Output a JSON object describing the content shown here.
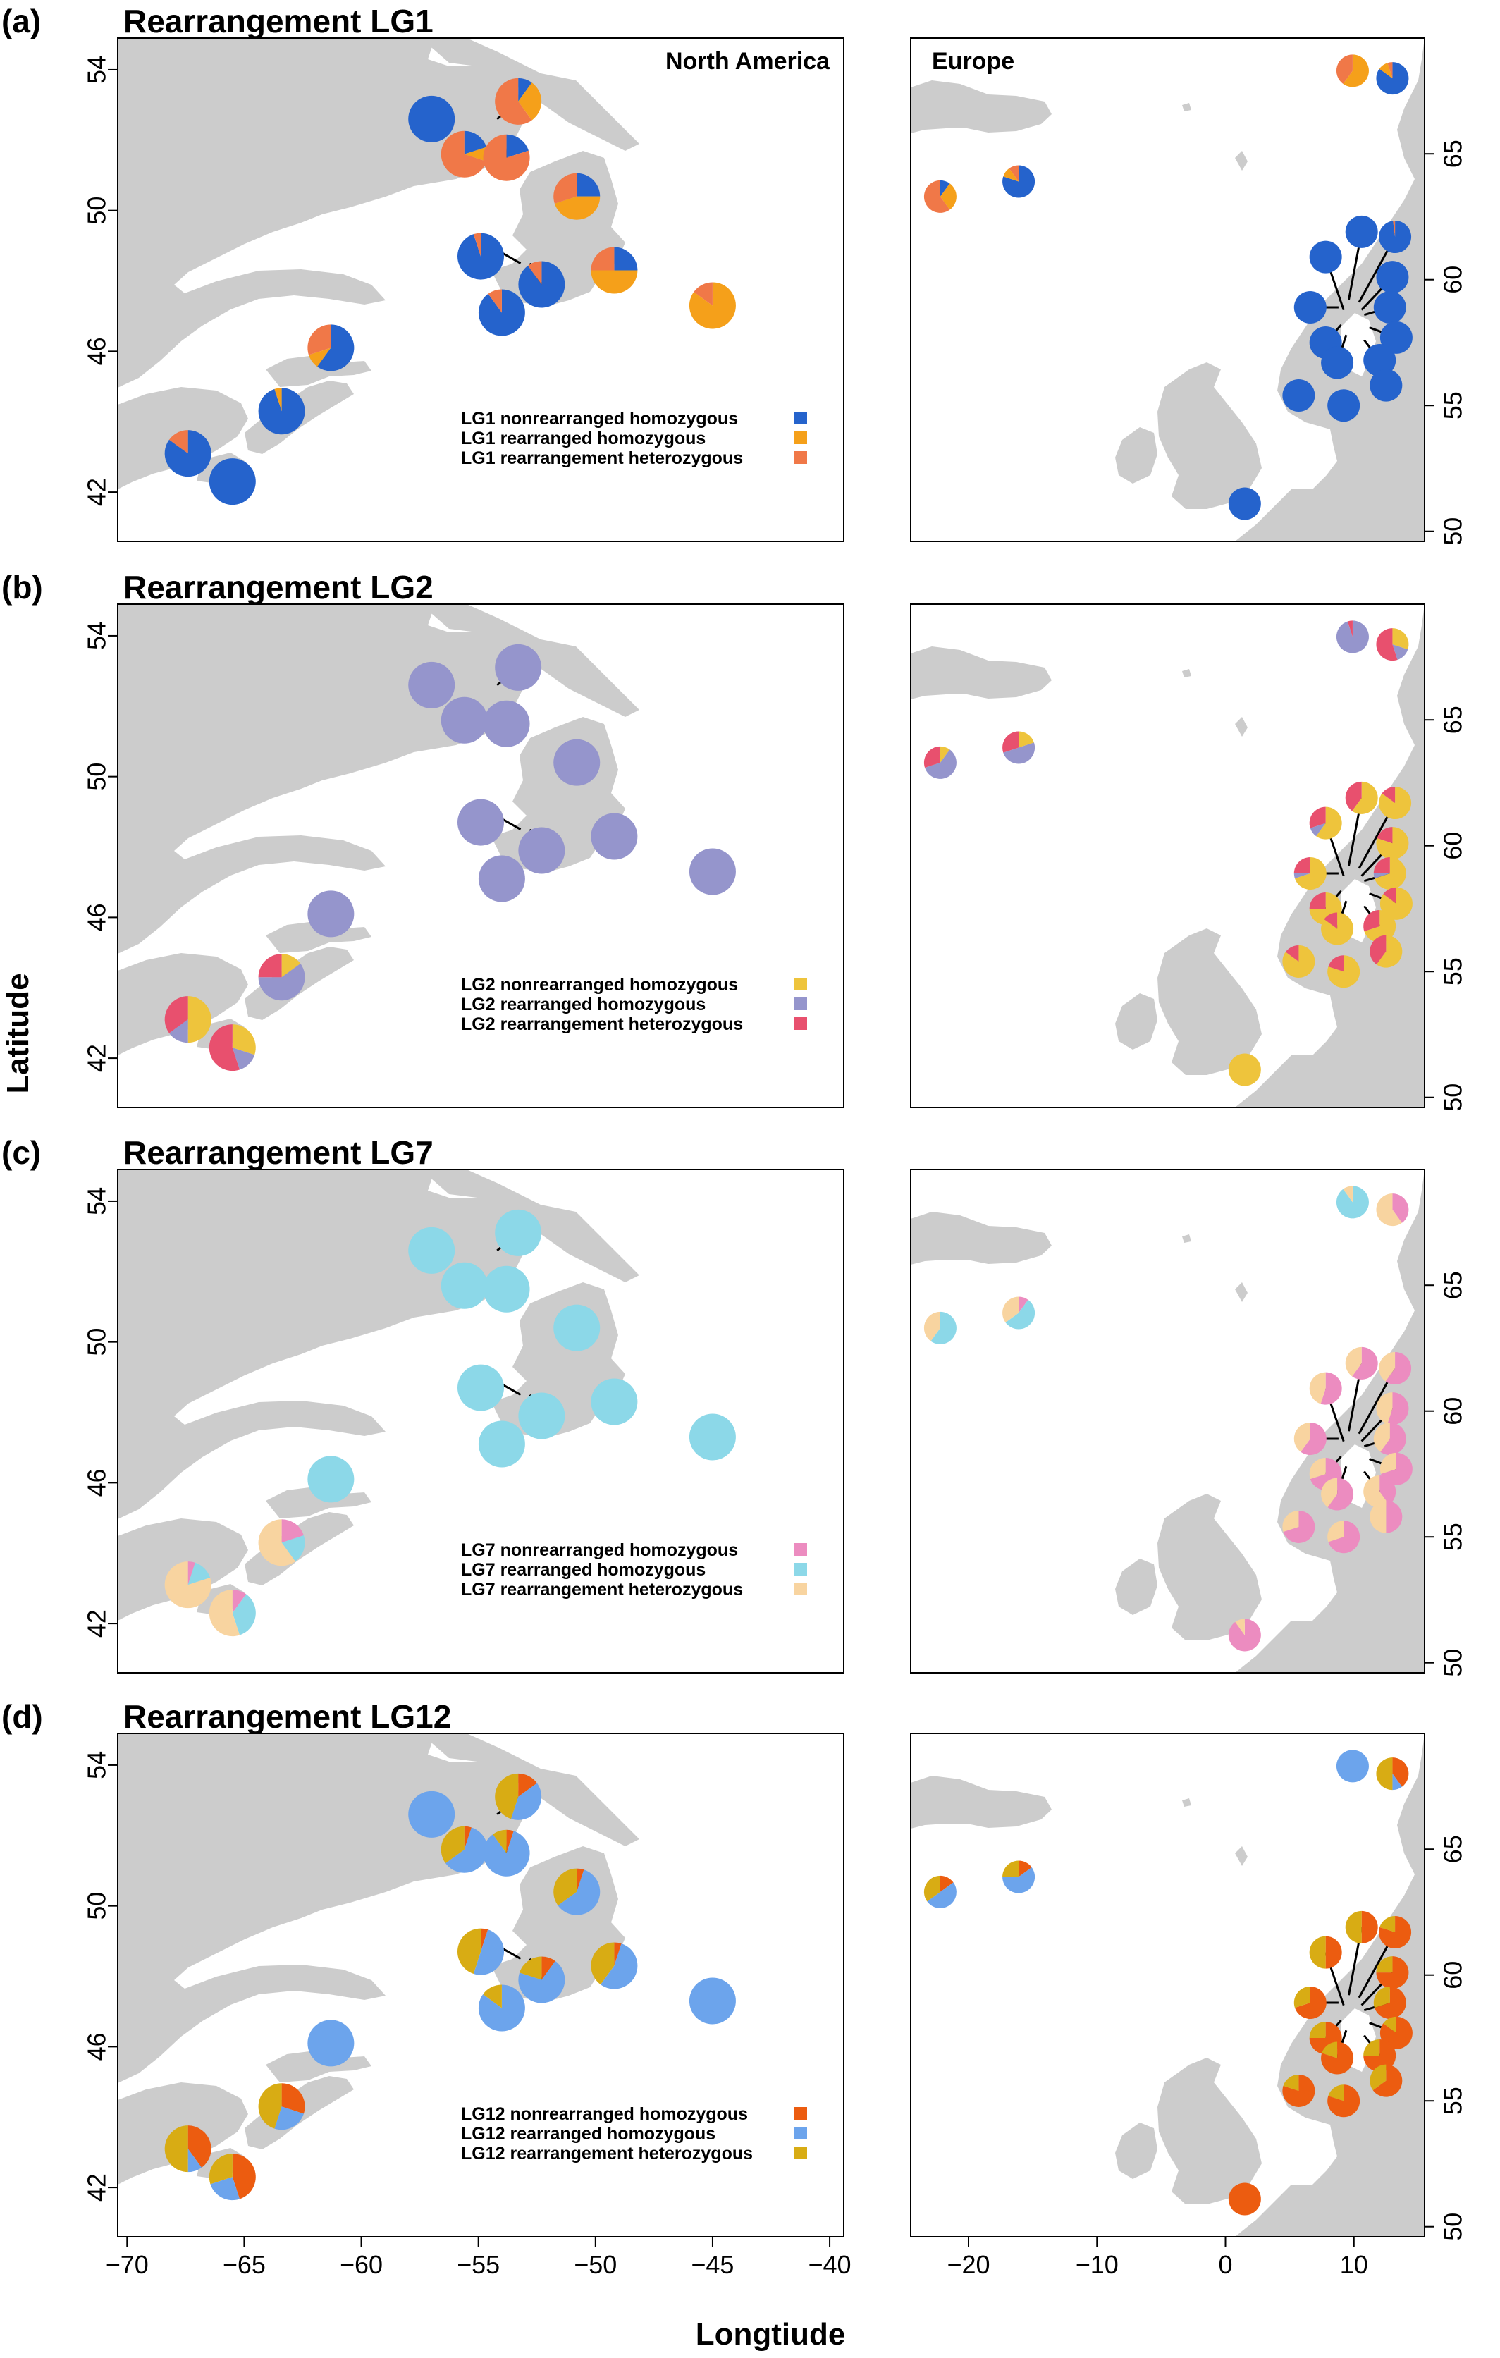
{
  "figure": {
    "xlabel": "Longtiude",
    "ylabel": "Latitude"
  },
  "regions": {
    "north_america": "North America",
    "europe": "Europe"
  },
  "axes": {
    "na_x_ticks": [
      "−70",
      "−65",
      "−60",
      "−55",
      "−50",
      "−45",
      "−40"
    ],
    "na_x_values": [
      -70,
      -65,
      -60,
      -55,
      -50,
      -45,
      -40
    ],
    "na_y_ticks": [
      "42",
      "46",
      "50",
      "54"
    ],
    "na_y_values": [
      42,
      46,
      50,
      54
    ],
    "eu_x_ticks": [
      "−20",
      "−10",
      "0",
      "10"
    ],
    "eu_x_values": [
      -20,
      -10,
      0,
      10
    ],
    "eu_y_ticks": [
      "50",
      "55",
      "60",
      "65"
    ],
    "eu_y_values": [
      50,
      55,
      60,
      65
    ],
    "na_xlim": [
      -70.4,
      -39.4
    ],
    "na_ylim": [
      40.6,
      54.9
    ],
    "eu_xlim": [
      -24.5,
      15.5
    ],
    "eu_ylim": [
      49.6,
      69.6
    ]
  },
  "panels": [
    {
      "letter": "(a)",
      "title": "Rearrangement LG1",
      "legend": [
        {
          "label": "LG1 nonrearranged homozygous",
          "color": "#2563cc"
        },
        {
          "label": "LG1 rearranged homozygous",
          "color": "#f5a01a"
        },
        {
          "label": "LG1 rearrangement heterozygous",
          "color": "#f07848"
        }
      ]
    },
    {
      "letter": "(b)",
      "title": "Rearrangement LG2",
      "legend": [
        {
          "label": "LG2 nonrearranged homozygous",
          "color": "#eec43c"
        },
        {
          "label": "LG2 rearranged homozygous",
          "color": "#9595cc"
        },
        {
          "label": "LG2 rearrangement heterozygous",
          "color": "#e8506e"
        }
      ]
    },
    {
      "letter": "(c)",
      "title": "Rearrangement LG7",
      "legend": [
        {
          "label": "LG7 nonrearranged homozygous",
          "color": "#ec8cc0"
        },
        {
          "label": "LG7 rearranged homozygous",
          "color": "#8cd8e8"
        },
        {
          "label": "LG7 rearrangement heterozygous",
          "color": "#f8d4a0"
        }
      ]
    },
    {
      "letter": "(d)",
      "title": "Rearrangement LG12",
      "legend": [
        {
          "label": "LG12 nonrearranged homozygous",
          "color": "#ec5c10"
        },
        {
          "label": "LG12 rearranged homozygous",
          "color": "#6ca4ec"
        },
        {
          "label": "LG12 rearrangement heterozygous",
          "color": "#d8ac14"
        }
      ]
    }
  ],
  "chart_data": {
    "type": "map-pie",
    "sites": {
      "north_america": [
        {
          "id": "na1",
          "lon": -67.4,
          "lat": 43.1
        },
        {
          "id": "na2",
          "lon": -65.5,
          "lat": 42.3
        },
        {
          "id": "na3",
          "lon": -63.4,
          "lat": 44.3
        },
        {
          "id": "na4",
          "lon": -61.3,
          "lat": 46.1
        },
        {
          "id": "na5",
          "lon": -57.0,
          "lat": 52.6
        },
        {
          "id": "na6",
          "lon": -55.6,
          "lat": 51.6
        },
        {
          "id": "na7",
          "lon": -53.8,
          "lat": 51.5
        },
        {
          "id": "na8",
          "lon": -53.3,
          "lat": 53.1
        },
        {
          "id": "na9",
          "lon": -50.8,
          "lat": 50.4
        },
        {
          "id": "na10",
          "lon": -54.9,
          "lat": 48.7
        },
        {
          "id": "na11",
          "lon": -54.0,
          "lat": 47.1
        },
        {
          "id": "na12",
          "lon": -52.3,
          "lat": 47.9
        },
        {
          "id": "na13",
          "lon": -49.2,
          "lat": 48.3
        },
        {
          "id": "na14",
          "lon": -45.0,
          "lat": 47.3
        }
      ],
      "europe": [
        {
          "id": "eu1",
          "lon": -22.2,
          "lat": 63.3
        },
        {
          "id": "eu2",
          "lon": -16.1,
          "lat": 63.9
        },
        {
          "id": "eu3",
          "lon": 9.9,
          "lat": 68.3
        },
        {
          "id": "eu4",
          "lon": 13.0,
          "lat": 68.0
        },
        {
          "id": "eu5",
          "lon": 10.6,
          "lat": 61.9
        },
        {
          "id": "eu6",
          "lon": 13.2,
          "lat": 61.7
        },
        {
          "id": "eu7",
          "lon": 7.8,
          "lat": 60.9
        },
        {
          "id": "eu8",
          "lon": 13.0,
          "lat": 60.1
        },
        {
          "id": "eu9",
          "lon": 6.6,
          "lat": 58.9
        },
        {
          "id": "eu10",
          "lon": 12.8,
          "lat": 58.9
        },
        {
          "id": "eu11",
          "lon": 7.8,
          "lat": 57.5
        },
        {
          "id": "eu12",
          "lon": 13.3,
          "lat": 57.7
        },
        {
          "id": "eu13",
          "lon": 8.7,
          "lat": 56.7
        },
        {
          "id": "eu14",
          "lon": 12.0,
          "lat": 56.8
        },
        {
          "id": "eu15",
          "lon": 5.7,
          "lat": 55.4
        },
        {
          "id": "eu16",
          "lon": 12.5,
          "lat": 55.8
        },
        {
          "id": "eu17",
          "lon": 9.2,
          "lat": 55.0
        },
        {
          "id": "eu18",
          "lon": 1.5,
          "lat": 51.1
        }
      ]
    },
    "panels": [
      {
        "name": "LG1",
        "na": [
          [
            0.85,
            0,
            0.15
          ],
          [
            1,
            0,
            0
          ],
          [
            0.95,
            0.05,
            0
          ],
          [
            0.6,
            0.1,
            0.3
          ],
          [
            1,
            0,
            0
          ],
          [
            0.2,
            0.1,
            0.7
          ],
          [
            0.2,
            0,
            0.8
          ],
          [
            0.1,
            0.3,
            0.6
          ],
          [
            0.25,
            0.45,
            0.3
          ],
          [
            0.95,
            0,
            0.05
          ],
          [
            0.9,
            0,
            0.1
          ],
          [
            0.9,
            0,
            0.1
          ],
          [
            0.25,
            0.5,
            0.25
          ],
          [
            0,
            0.85,
            0.15
          ]
        ],
        "eu": [
          [
            0.1,
            0.3,
            0.6
          ],
          [
            0.8,
            0.1,
            0.1
          ],
          [
            0,
            0.6,
            0.4
          ],
          [
            0.85,
            0.1,
            0.05
          ],
          [
            1,
            0,
            0
          ],
          [
            0.98,
            0,
            0.02
          ],
          [
            1,
            0,
            0
          ],
          [
            1,
            0,
            0
          ],
          [
            1,
            0,
            0
          ],
          [
            1,
            0,
            0
          ],
          [
            1,
            0,
            0
          ],
          [
            1,
            0,
            0
          ],
          [
            1,
            0,
            0
          ],
          [
            1,
            0,
            0
          ],
          [
            1,
            0,
            0
          ],
          [
            1,
            0,
            0
          ],
          [
            1,
            0,
            0
          ],
          [
            1,
            0,
            0
          ]
        ]
      },
      {
        "name": "LG2",
        "na": [
          [
            0.5,
            0.15,
            0.35
          ],
          [
            0.3,
            0.15,
            0.55
          ],
          [
            0.15,
            0.6,
            0.25
          ],
          [
            0,
            1,
            0
          ],
          [
            0,
            1,
            0
          ],
          [
            0,
            1,
            0
          ],
          [
            0,
            1,
            0
          ],
          [
            0,
            1,
            0
          ],
          [
            0,
            1,
            0
          ],
          [
            0,
            1,
            0
          ],
          [
            0,
            1,
            0
          ],
          [
            0,
            1,
            0
          ],
          [
            0,
            1,
            0
          ],
          [
            0,
            1,
            0
          ]
        ],
        "eu": [
          [
            0.1,
            0.6,
            0.3
          ],
          [
            0.2,
            0.5,
            0.3
          ],
          [
            0,
            0.95,
            0.05
          ],
          [
            0.3,
            0.15,
            0.55
          ],
          [
            0.6,
            0,
            0.4
          ],
          [
            0.85,
            0,
            0.15
          ],
          [
            0.6,
            0.1,
            0.3
          ],
          [
            0.8,
            0,
            0.2
          ],
          [
            0.7,
            0.05,
            0.25
          ],
          [
            0.7,
            0.05,
            0.25
          ],
          [
            0.75,
            0,
            0.25
          ],
          [
            0.85,
            0,
            0.15
          ],
          [
            0.85,
            0,
            0.15
          ],
          [
            0.7,
            0,
            0.3
          ],
          [
            0.85,
            0,
            0.15
          ],
          [
            0.6,
            0,
            0.4
          ],
          [
            0.8,
            0,
            0.2
          ],
          [
            1,
            0,
            0
          ]
        ]
      },
      {
        "name": "LG7",
        "na": [
          [
            0.05,
            0.15,
            0.8
          ],
          [
            0.1,
            0.35,
            0.55
          ],
          [
            0.2,
            0.2,
            0.6
          ],
          [
            0,
            1,
            0
          ],
          [
            0,
            1,
            0
          ],
          [
            0,
            1,
            0
          ],
          [
            0,
            1,
            0
          ],
          [
            0,
            1,
            0
          ],
          [
            0,
            1,
            0
          ],
          [
            0,
            1,
            0
          ],
          [
            0,
            1,
            0
          ],
          [
            0,
            1,
            0
          ],
          [
            0,
            1,
            0
          ],
          [
            0,
            1,
            0
          ]
        ],
        "eu": [
          [
            0,
            0.6,
            0.4
          ],
          [
            0.1,
            0.55,
            0.35
          ],
          [
            0,
            0.9,
            0.1
          ],
          [
            0.4,
            0,
            0.6
          ],
          [
            0.6,
            0,
            0.4
          ],
          [
            0.6,
            0,
            0.4
          ],
          [
            0.55,
            0,
            0.45
          ],
          [
            0.55,
            0,
            0.45
          ],
          [
            0.6,
            0,
            0.4
          ],
          [
            0.6,
            0,
            0.4
          ],
          [
            0.7,
            0,
            0.3
          ],
          [
            0.7,
            0,
            0.3
          ],
          [
            0.6,
            0,
            0.4
          ],
          [
            0.4,
            0,
            0.6
          ],
          [
            0.7,
            0,
            0.3
          ],
          [
            0.5,
            0,
            0.5
          ],
          [
            0.7,
            0,
            0.3
          ],
          [
            0.9,
            0,
            0.1
          ]
        ]
      },
      {
        "name": "LG12",
        "na": [
          [
            0.4,
            0.1,
            0.5
          ],
          [
            0.45,
            0.25,
            0.3
          ],
          [
            0.3,
            0.25,
            0.45
          ],
          [
            0,
            1,
            0
          ],
          [
            0,
            1,
            0
          ],
          [
            0.05,
            0.6,
            0.35
          ],
          [
            0.05,
            0.85,
            0.1
          ],
          [
            0.15,
            0.4,
            0.45
          ],
          [
            0.05,
            0.6,
            0.35
          ],
          [
            0.05,
            0.5,
            0.45
          ],
          [
            0,
            0.85,
            0.15
          ],
          [
            0.1,
            0.7,
            0.2
          ],
          [
            0.05,
            0.55,
            0.4
          ],
          [
            0,
            1,
            0
          ]
        ],
        "eu": [
          [
            0.15,
            0.5,
            0.35
          ],
          [
            0.15,
            0.6,
            0.25
          ],
          [
            0,
            1,
            0
          ],
          [
            0.4,
            0.1,
            0.5
          ],
          [
            0.5,
            0,
            0.5
          ],
          [
            0.8,
            0,
            0.2
          ],
          [
            0.5,
            0,
            0.5
          ],
          [
            0.75,
            0,
            0.25
          ],
          [
            0.7,
            0,
            0.3
          ],
          [
            0.7,
            0,
            0.3
          ],
          [
            0.75,
            0,
            0.25
          ],
          [
            0.85,
            0,
            0.15
          ],
          [
            0.8,
            0,
            0.2
          ],
          [
            0.75,
            0,
            0.25
          ],
          [
            0.8,
            0,
            0.2
          ],
          [
            0.65,
            0,
            0.35
          ],
          [
            0.8,
            0,
            0.2
          ],
          [
            1,
            0,
            0
          ]
        ]
      }
    ]
  }
}
